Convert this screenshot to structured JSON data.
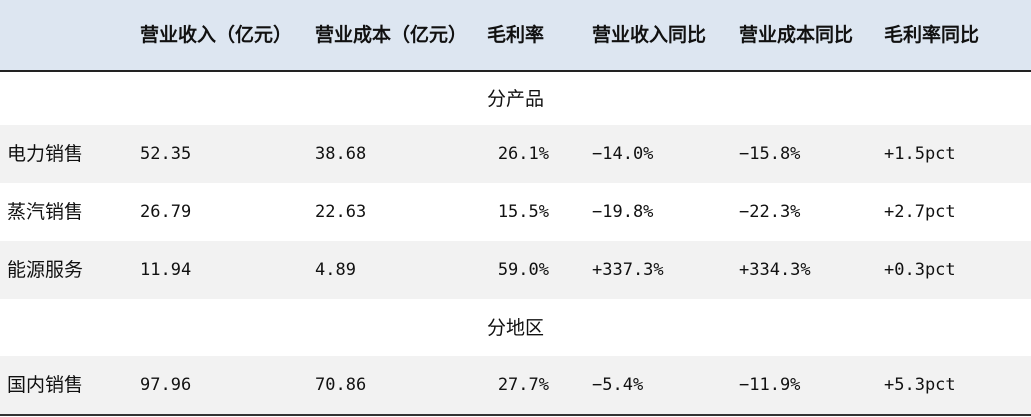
{
  "headers": [
    "",
    "营业收入（亿元）",
    "营业成本（亿元）",
    "毛利率",
    "营业收入同比",
    "营业成本同比",
    "毛利率同比"
  ],
  "sections": [
    {
      "title": "分产品",
      "rows": [
        {
          "name": "电力销售",
          "revenue": "52.35",
          "cost": "38.68",
          "margin": "26.1%",
          "rev_yoy": "−14.0%",
          "cost_yoy": "−15.8%",
          "margin_yoy": "+1.5pct"
        },
        {
          "name": "蒸汽销售",
          "revenue": "26.79",
          "cost": "22.63",
          "margin": "15.5%",
          "rev_yoy": "−19.8%",
          "cost_yoy": "−22.3%",
          "margin_yoy": "+2.7pct"
        },
        {
          "name": "能源服务",
          "revenue": "11.94",
          "cost": "4.89",
          "margin": "59.0%",
          "rev_yoy": "+337.3%",
          "cost_yoy": "+334.3%",
          "margin_yoy": "+0.3pct"
        }
      ]
    },
    {
      "title": "分地区",
      "rows": [
        {
          "name": "国内销售",
          "revenue": "97.96",
          "cost": "70.86",
          "margin": "27.7%",
          "rev_yoy": "−5.4%",
          "cost_yoy": "−11.9%",
          "margin_yoy": "+5.3pct"
        }
      ]
    }
  ],
  "colors": {
    "header_bg": "#dde6f1",
    "row_shade": "#f2f2f2",
    "rule": "#222222"
  }
}
